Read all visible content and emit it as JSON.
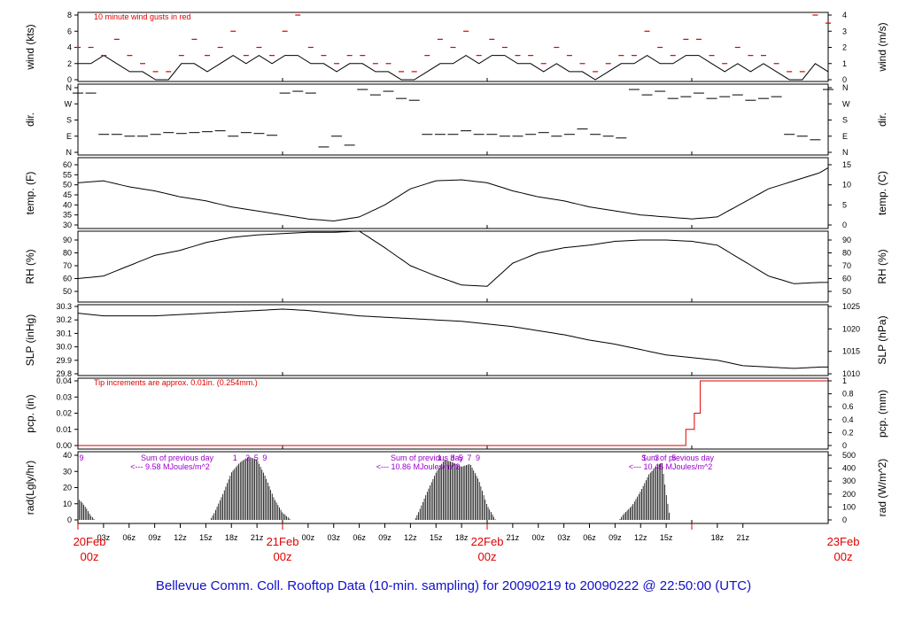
{
  "title": "Bellevue Comm. Coll. Rooftop Data (10-min. sampling) for 20090219  to  20090222 @ 22:50:00  (UTC)",
  "colors": {
    "ink": "#000000",
    "red": "#e00000",
    "purple": "#9900cc",
    "title": "#1010c8"
  },
  "time_axis": {
    "ticks": [
      "03z",
      "06z",
      "09z",
      "12z",
      "15z",
      "18z",
      "21z",
      "00z",
      "03z",
      "06z",
      "09z",
      "12z",
      "15z",
      "18z",
      "21z",
      "00z",
      "03z",
      "06z",
      "09z",
      "12z",
      "15z",
      "18z",
      "21z"
    ],
    "dates": [
      {
        "day": "20Feb",
        "z": "00z"
      },
      {
        "day": "21Feb",
        "z": "00z"
      },
      {
        "day": "22Feb",
        "z": "00z"
      },
      {
        "day": "23Feb",
        "z": "00z"
      }
    ]
  },
  "chart_data": [
    {
      "type": "line",
      "id": "wind",
      "ylabel": "wind (kts)",
      "ylabel_right": "wind (m/s)",
      "ylim": [
        0,
        8
      ],
      "left_ticks": [
        "0",
        "2",
        "4",
        "6",
        "8"
      ],
      "right_ticks": [
        "0",
        "1",
        "2",
        "3",
        "4"
      ],
      "annotation": "10  minute wind gusts in red",
      "series": [
        {
          "role": "wind speed (kts), 2-hourly samples",
          "values": [
            2,
            2,
            3,
            2,
            1,
            1,
            0,
            0,
            2,
            2,
            1,
            2,
            3,
            2,
            3,
            2,
            3,
            3,
            2,
            2,
            1,
            2,
            2,
            1,
            1,
            0,
            0,
            1,
            2,
            2,
            3,
            2,
            3,
            3,
            2,
            2,
            1,
            2,
            1,
            1,
            0,
            1,
            2,
            2,
            3,
            2,
            2,
            3,
            3,
            2,
            1,
            2,
            1,
            2,
            1,
            0,
            0,
            2,
            1
          ]
        },
        {
          "role": "gusts (kts), 2-hourly samples",
          "values": [
            4,
            4,
            3,
            5,
            3,
            2,
            1,
            1,
            3,
            5,
            3,
            4,
            6,
            3,
            4,
            3,
            6,
            8,
            4,
            3,
            2,
            3,
            3,
            2,
            2,
            1,
            1,
            3,
            5,
            4,
            6,
            3,
            5,
            4,
            3,
            3,
            2,
            4,
            3,
            2,
            1,
            2,
            3,
            3,
            6,
            4,
            3,
            5,
            5,
            3,
            2,
            4,
            3,
            3,
            2,
            1,
            1,
            8,
            7
          ]
        }
      ]
    },
    {
      "type": "scatter",
      "id": "dir",
      "ylabel": "dir.",
      "ylabel_right": "dir.",
      "left_ticks": [
        "N",
        "E",
        "S",
        "W",
        "N"
      ],
      "right_ticks": [
        "N",
        "E",
        "S",
        "W",
        "N"
      ],
      "note": "wind direction in degrees (0=N, 90=E, 180=S, 270=W, 360=N), 2-hourly samples",
      "values": [
        330,
        330,
        100,
        100,
        90,
        90,
        100,
        110,
        105,
        110,
        115,
        120,
        90,
        110,
        105,
        95,
        330,
        340,
        330,
        30,
        90,
        40,
        350,
        320,
        340,
        300,
        290,
        100,
        100,
        100,
        120,
        100,
        100,
        90,
        90,
        100,
        110,
        90,
        100,
        130,
        100,
        90,
        80,
        350,
        320,
        340,
        300,
        310,
        330,
        300,
        310,
        320,
        290,
        300,
        310,
        100,
        90,
        70,
        350
      ]
    },
    {
      "type": "line",
      "id": "temp",
      "ylabel": "temp. (F)",
      "ylabel_right": "temp. (C)",
      "ylim": [
        30,
        60
      ],
      "left_ticks": [
        "30",
        "35",
        "40",
        "45",
        "50",
        "55",
        "60"
      ],
      "right_ticks": [
        "0",
        "5",
        "10",
        "15"
      ],
      "x_hours": [
        0,
        3,
        6,
        9,
        12,
        15,
        18,
        21,
        24,
        27,
        30,
        33,
        36,
        39,
        42,
        45,
        48,
        51,
        54,
        57,
        60,
        63,
        66,
        69,
        72,
        75,
        78,
        81,
        84,
        87,
        88
      ],
      "values": [
        51,
        52,
        49,
        47,
        44,
        42,
        39,
        37,
        35,
        33,
        32,
        34,
        40,
        48,
        52,
        52.5,
        51,
        47,
        44,
        42,
        39,
        37,
        35,
        34,
        33,
        34,
        41,
        48,
        52,
        56,
        58.5
      ]
    },
    {
      "type": "line",
      "id": "rh",
      "ylabel": "RH (%)",
      "ylabel_right": "RH (%)",
      "ylim": [
        50,
        90
      ],
      "left_ticks": [
        "50",
        "60",
        "70",
        "80",
        "90"
      ],
      "right_ticks": [
        "50",
        "60",
        "70",
        "80",
        "90"
      ],
      "x_hours": [
        0,
        3,
        6,
        9,
        12,
        15,
        18,
        21,
        24,
        27,
        30,
        33,
        36,
        39,
        42,
        45,
        48,
        51,
        54,
        57,
        60,
        63,
        66,
        69,
        72,
        75,
        78,
        81,
        84,
        87,
        88
      ],
      "values": [
        60,
        62,
        70,
        78,
        82,
        88,
        92,
        94,
        95,
        96,
        96,
        97,
        84,
        70,
        62,
        55,
        54,
        72,
        80,
        84,
        86,
        89,
        90,
        90,
        89,
        86,
        74,
        62,
        56,
        57,
        57
      ]
    },
    {
      "type": "line",
      "id": "slp",
      "ylabel": "SLP (inHg)",
      "ylabel_right": "SLP (hPa)",
      "ylim": [
        29.8,
        30.3
      ],
      "left_ticks": [
        "29.8",
        "29.9",
        "30.0",
        "30.1",
        "30.2",
        "30.3"
      ],
      "right_ticks": [
        "1010",
        "1015",
        "1020",
        "1025"
      ],
      "x_hours": [
        0,
        3,
        6,
        9,
        12,
        15,
        18,
        21,
        24,
        27,
        30,
        33,
        36,
        39,
        42,
        45,
        48,
        51,
        54,
        57,
        60,
        63,
        66,
        69,
        72,
        75,
        78,
        81,
        84,
        87,
        88
      ],
      "values": [
        30.25,
        30.23,
        30.23,
        30.23,
        30.24,
        30.25,
        30.26,
        30.27,
        30.28,
        30.27,
        30.25,
        30.23,
        30.22,
        30.21,
        30.2,
        30.19,
        30.17,
        30.15,
        30.12,
        30.09,
        30.05,
        30.02,
        29.98,
        29.94,
        29.92,
        29.9,
        29.86,
        29.85,
        29.84,
        29.85,
        29.85
      ]
    },
    {
      "type": "line",
      "id": "pcp",
      "ylabel": "pcp. (in)",
      "ylabel_right": "pcp. (mm)",
      "ylim": [
        0,
        0.04
      ],
      "left_ticks": [
        "0.00",
        "0.01",
        "0.02",
        "0.03",
        "0.04"
      ],
      "right_ticks": [
        "0",
        "0.2",
        "0.4",
        "0.6",
        "0.8",
        "1"
      ],
      "annotation": "Tip increments are approx. 0.01in. (0.254mm.)",
      "x_hours": [
        0,
        70.5,
        71.3,
        72.3,
        73.0,
        88
      ],
      "values": [
        0,
        0,
        0.01,
        0.02,
        0.04,
        0.04
      ]
    },
    {
      "type": "bar",
      "id": "rad",
      "ylabel": "rad(Lgly/hr)",
      "ylabel_right": "rad (W/m^2)",
      "ylim": [
        0,
        45
      ],
      "left_ticks": [
        "0",
        "10",
        "20",
        "30",
        "40"
      ],
      "right_ticks": [
        "0",
        "100",
        "200",
        "300",
        "400",
        "500"
      ],
      "annotations": [
        {
          "line1": "Sum of previous day",
          "line2": "<--- 9.58 MJoules/m^2"
        },
        {
          "line1": "Sum of previous day",
          "line2": "<--- 10.86 MJoules/m^2"
        },
        {
          "line1": "Sum of previous day",
          "line2": "<--- 10.45 MJoules/m^2"
        }
      ],
      "uv_marks": [
        {
          "hour": 0,
          "label": "9"
        },
        {
          "hour": 18,
          "label": "1"
        },
        {
          "hour": 19.5,
          "label": "3"
        },
        {
          "hour": 20.5,
          "label": "5"
        },
        {
          "hour": 21.5,
          "label": "9"
        },
        {
          "hour": 42,
          "label": "1"
        },
        {
          "hour": 43.5,
          "label": "3"
        },
        {
          "hour": 44.5,
          "label": "5"
        },
        {
          "hour": 45.5,
          "label": "7"
        },
        {
          "hour": 46.5,
          "label": "9"
        },
        {
          "hour": 66,
          "label": "1"
        },
        {
          "hour": 67.5,
          "label": "3"
        },
        {
          "hour": 69.5,
          "label": "5"
        }
      ],
      "x_hours": [
        0,
        0.5,
        1,
        1.5,
        2,
        15.5,
        16,
        17,
        18,
        19,
        20,
        21,
        22,
        23,
        24,
        25,
        39.5,
        40,
        41,
        42,
        43,
        44,
        45,
        46,
        47,
        48,
        49,
        63.5,
        64,
        65,
        66,
        67,
        68,
        68.5,
        69,
        69.5
      ],
      "values": [
        15,
        12,
        8,
        3,
        0,
        0,
        5,
        18,
        33,
        40,
        44,
        42,
        30,
        15,
        5,
        0,
        0,
        6,
        20,
        33,
        42,
        40,
        37,
        39,
        28,
        10,
        0,
        0,
        4,
        10,
        20,
        32,
        38,
        40,
        18,
        0
      ]
    }
  ]
}
